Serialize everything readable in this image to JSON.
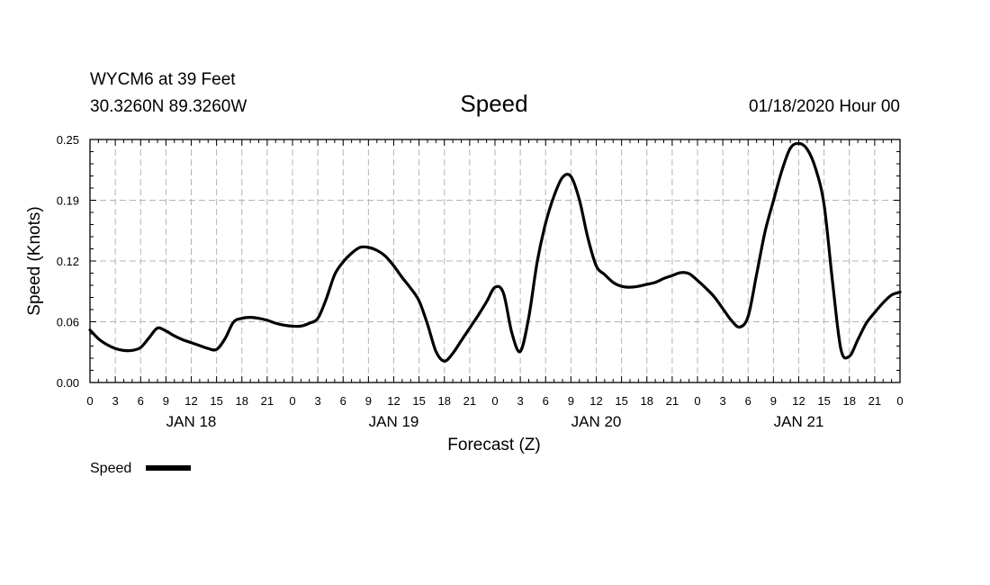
{
  "header": {
    "station": "WYCM6 at 39 Feet",
    "coords": "30.3260N 89.3260W",
    "title": "Speed",
    "datetime": "01/18/2020 Hour 00"
  },
  "axes": {
    "ylabel": "Speed (Knots)",
    "xlabel": "Forecast (Z)"
  },
  "legend": {
    "label": "Speed",
    "color": "#000000"
  },
  "chart_data": {
    "type": "line",
    "title": "Speed",
    "xlabel": "Forecast (Z)",
    "ylabel": "Speed (Knots)",
    "xlim": [
      0,
      96
    ],
    "ylim": [
      0,
      0.25
    ],
    "grid": true,
    "legend_position": "bottom-left",
    "x_tick_values": [
      0,
      3,
      6,
      9,
      12,
      15,
      18,
      21,
      24,
      27,
      30,
      33,
      36,
      39,
      42,
      45,
      48,
      51,
      54,
      57,
      60,
      63,
      66,
      69,
      72,
      75,
      78,
      81,
      84,
      87,
      90,
      93,
      96
    ],
    "x_tick_labels": [
      "0",
      "3",
      "6",
      "9",
      "12",
      "15",
      "18",
      "21",
      "0",
      "3",
      "6",
      "9",
      "12",
      "15",
      "18",
      "21",
      "0",
      "3",
      "6",
      "9",
      "12",
      "15",
      "18",
      "21",
      "0",
      "3",
      "6",
      "9",
      "12",
      "15",
      "18",
      "21",
      "0"
    ],
    "y_ticks": [
      "0.00",
      "0.06",
      "0.12",
      "0.19",
      "0.25"
    ],
    "y_tick_values": [
      0,
      0.0625,
      0.125,
      0.1875,
      0.25
    ],
    "day_labels": [
      {
        "label": "JAN 18",
        "x": 12
      },
      {
        "label": "JAN 19",
        "x": 36
      },
      {
        "label": "JAN 20",
        "x": 60
      },
      {
        "label": "JAN 21",
        "x": 84
      }
    ],
    "series": [
      {
        "name": "Speed",
        "color": "#000000",
        "x": [
          0,
          1,
          2,
          3,
          4,
          5,
          6,
          7,
          8,
          9,
          10,
          11,
          12,
          13,
          14,
          15,
          16,
          17,
          18,
          19,
          20,
          21,
          22,
          23,
          24,
          25,
          26,
          27,
          28,
          29,
          30,
          31,
          32,
          33,
          34,
          35,
          36,
          37,
          38,
          39,
          40,
          41,
          42,
          43,
          44,
          45,
          46,
          47,
          48,
          49,
          50,
          51,
          52,
          53,
          54,
          55,
          56,
          57,
          58,
          59,
          60,
          61,
          62,
          63,
          64,
          65,
          66,
          67,
          68,
          69,
          70,
          71,
          72,
          73,
          74,
          75,
          76,
          77,
          78,
          79,
          80,
          81,
          82,
          83,
          84,
          85,
          86,
          87,
          88,
          89,
          90,
          91,
          92,
          93,
          94,
          95,
          96
        ],
        "y": [
          0.054,
          0.045,
          0.039,
          0.035,
          0.033,
          0.033,
          0.036,
          0.046,
          0.056,
          0.053,
          0.048,
          0.044,
          0.041,
          0.038,
          0.035,
          0.034,
          0.045,
          0.062,
          0.066,
          0.067,
          0.066,
          0.064,
          0.061,
          0.059,
          0.058,
          0.058,
          0.061,
          0.066,
          0.086,
          0.111,
          0.124,
          0.133,
          0.139,
          0.139,
          0.136,
          0.13,
          0.12,
          0.108,
          0.097,
          0.084,
          0.06,
          0.032,
          0.022,
          0.03,
          0.043,
          0.056,
          0.069,
          0.083,
          0.098,
          0.092,
          0.051,
          0.032,
          0.067,
          0.124,
          0.164,
          0.192,
          0.211,
          0.212,
          0.188,
          0.149,
          0.12,
          0.111,
          0.103,
          0.099,
          0.098,
          0.099,
          0.101,
          0.103,
          0.107,
          0.11,
          0.113,
          0.112,
          0.105,
          0.097,
          0.088,
          0.076,
          0.064,
          0.057,
          0.068,
          0.111,
          0.155,
          0.187,
          0.218,
          0.241,
          0.246,
          0.24,
          0.22,
          0.183,
          0.104,
          0.034,
          0.027,
          0.044,
          0.061,
          0.072,
          0.082,
          0.09,
          0.093
        ]
      }
    ]
  }
}
